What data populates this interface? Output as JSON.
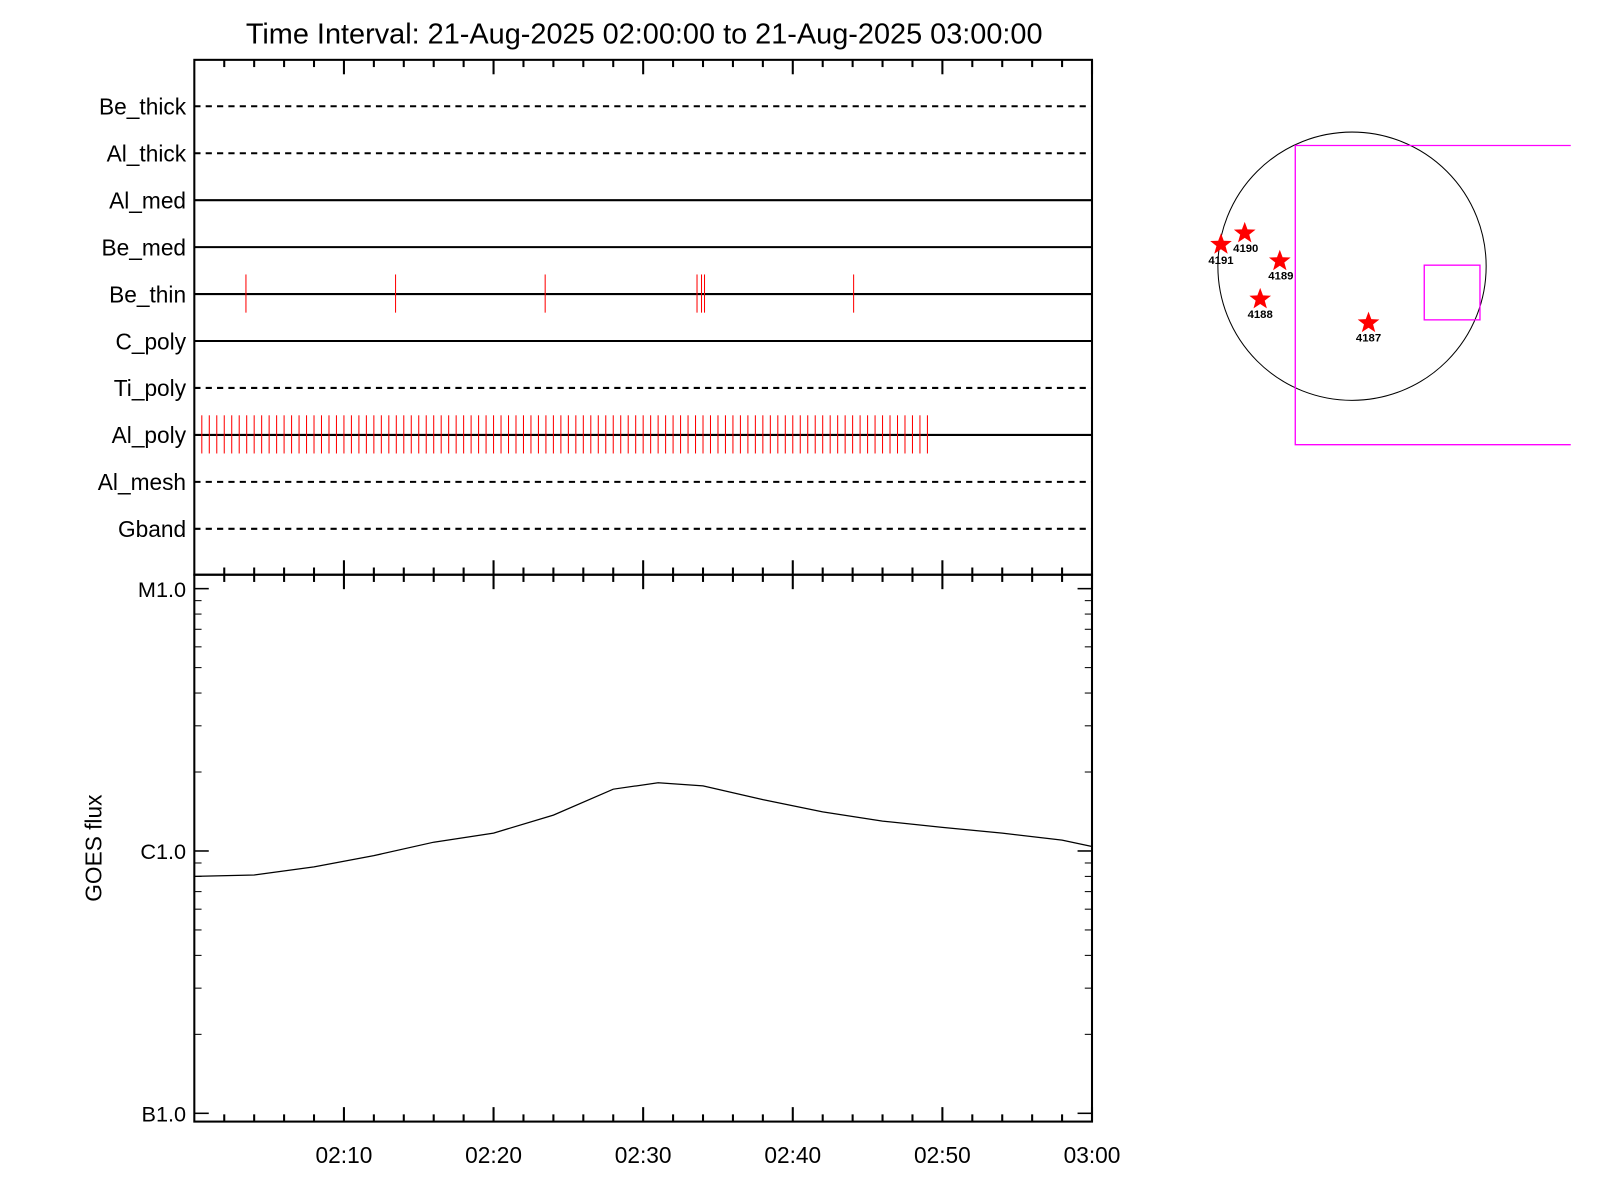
{
  "chart_data": [
    {
      "type": "event",
      "title": "Time Interval: 21-Aug-2025 02:00:00 to 21-Aug-2025 03:00:00",
      "categories": [
        "Be_thick",
        "Al_thick",
        "Al_med",
        "Be_med",
        "Be_thin",
        "C_poly",
        "Ti_poly",
        "Al_poly",
        "Al_mesh",
        "Gband"
      ],
      "styles": [
        "dashed",
        "dashed",
        "solid",
        "solid",
        "solid",
        "solid",
        "dashed",
        "solid",
        "dashed",
        "dashed"
      ],
      "xlim": [
        "02:00:00",
        "03:00:00"
      ],
      "series": [
        {
          "name": "Be_thin",
          "color": "#ff0000",
          "x": [
            "02:03:27",
            "02:13:27",
            "02:23:27",
            "02:33:36",
            "02:33:54",
            "02:34:06",
            "02:44:04"
          ]
        },
        {
          "name": "Al_poly",
          "color": "#ff0000",
          "x": [
            "02:00:30",
            "02:01:00",
            "02:01:30",
            "02:02:00",
            "02:02:30",
            "02:03:00",
            "02:03:30",
            "02:04:00",
            "02:04:30",
            "02:05:00",
            "02:05:30",
            "02:06:00",
            "02:06:30",
            "02:07:00",
            "02:07:30",
            "02:08:00",
            "02:08:30",
            "02:09:00",
            "02:09:30",
            "02:10:00",
            "02:10:30",
            "02:11:00",
            "02:11:30",
            "02:12:00",
            "02:12:30",
            "02:13:00",
            "02:13:30",
            "02:14:00",
            "02:14:30",
            "02:15:00",
            "02:15:30",
            "02:16:00",
            "02:16:30",
            "02:17:00",
            "02:17:30",
            "02:18:00",
            "02:18:30",
            "02:19:00",
            "02:19:30",
            "02:20:00",
            "02:20:30",
            "02:21:00",
            "02:21:30",
            "02:22:00",
            "02:22:30",
            "02:23:00",
            "02:23:30",
            "02:24:00",
            "02:24:30",
            "02:25:00",
            "02:25:30",
            "02:26:00",
            "02:26:30",
            "02:27:00",
            "02:27:30",
            "02:28:00",
            "02:28:30",
            "02:29:00",
            "02:29:30",
            "02:30:00",
            "02:30:30",
            "02:31:00",
            "02:31:30",
            "02:32:00",
            "02:32:30",
            "02:33:00",
            "02:33:30",
            "02:34:00",
            "02:34:30",
            "02:35:00",
            "02:35:30",
            "02:36:00",
            "02:36:30",
            "02:37:00",
            "02:37:30",
            "02:38:00",
            "02:38:30",
            "02:39:00",
            "02:39:30",
            "02:40:00",
            "02:40:30",
            "02:41:00",
            "02:41:30",
            "02:42:00",
            "02:42:30",
            "02:43:00",
            "02:43:30",
            "02:44:00",
            "02:44:30",
            "02:45:00",
            "02:45:30",
            "02:46:00",
            "02:46:30",
            "02:47:00",
            "02:47:30",
            "02:48:00",
            "02:48:30",
            "02:49:00"
          ]
        }
      ]
    },
    {
      "type": "line",
      "ylabel": "GOES flux",
      "log_y": true,
      "color": "#000000",
      "x": [
        "02:00",
        "02:04",
        "02:08",
        "02:12",
        "02:16",
        "02:20",
        "02:24",
        "02:28",
        "02:31",
        "02:34",
        "02:38",
        "02:42",
        "02:46",
        "02:50",
        "02:54",
        "02:58",
        "03:00"
      ],
      "values": [
        8e-07,
        8.1e-07,
        8.7e-07,
        9.6e-07,
        1.08e-06,
        1.17e-06,
        1.37e-06,
        1.72e-06,
        1.82e-06,
        1.77e-06,
        1.57e-06,
        1.41e-06,
        1.3e-06,
        1.23e-06,
        1.17e-06,
        1.1e-06,
        1.04e-06
      ],
      "xlim": [
        "02:00",
        "03:00"
      ],
      "xticks": [
        "02:10",
        "02:20",
        "02:30",
        "02:40",
        "02:50",
        "03:00"
      ],
      "xminorticks": [
        "02:02",
        "02:04",
        "02:06",
        "02:08",
        "02:12",
        "02:14",
        "02:16",
        "02:18",
        "02:22",
        "02:24",
        "02:26",
        "02:28",
        "02:32",
        "02:34",
        "02:36",
        "02:38",
        "02:42",
        "02:44",
        "02:46",
        "02:48",
        "02:52",
        "02:54",
        "02:56",
        "02:58"
      ],
      "ylim": [
        9.3e-08,
        1.13e-05
      ],
      "yticks": [
        {
          "value": 1e-07,
          "label": "B1.0"
        },
        {
          "value": 1e-06,
          "label": "C1.0"
        },
        {
          "value": 1e-05,
          "label": "M1.0"
        }
      ],
      "yminorticks": [
        2e-07,
        3e-07,
        4e-07,
        5e-07,
        6e-07,
        7e-07,
        8e-07,
        9e-07,
        2e-06,
        3e-06,
        4e-06,
        5e-06,
        6e-06,
        7e-06,
        8e-06,
        9e-06
      ]
    }
  ],
  "map": {
    "star_color": "#ff0000",
    "box_color": "#ff00ff",
    "regions": [
      {
        "label": "4191"
      },
      {
        "label": "4190"
      },
      {
        "label": "4189"
      },
      {
        "label": "4188"
      },
      {
        "label": "4187"
      }
    ]
  }
}
